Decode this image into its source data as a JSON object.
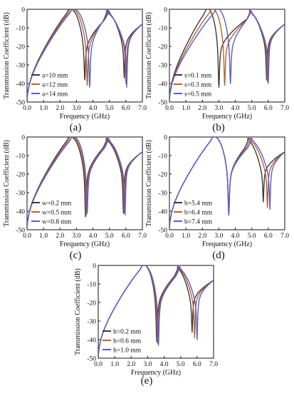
{
  "figure": {
    "background": "#ffffff",
    "axis_color": "#111111"
  },
  "chart_data": [
    {
      "type": "line",
      "panel_label": "(a)",
      "xlabel": "Frequency (GHz)",
      "ylabel": "Transmission Coefficient (dB)",
      "xlim": [
        0.0,
        7.0
      ],
      "ylim": [
        -50,
        0
      ],
      "xticks": [
        "0.0",
        "1.0",
        "2.0",
        "3.0",
        "4.0",
        "5.0",
        "6.0",
        "7.0"
      ],
      "yticks": [
        "0",
        "-10",
        "-20",
        "-30",
        "-40",
        "-50"
      ],
      "legend": "bottom-left",
      "series": [
        {
          "name": "a=10 mm",
          "color": "#3a3a3a",
          "peaks": [
            2.6,
            4.9
          ],
          "notches": [
            [
              3.5,
              -36
            ],
            [
              5.9,
              -35
            ]
          ]
        },
        {
          "name": "a=12 mm",
          "color": "#b8642a",
          "peaks": [
            2.7,
            4.85
          ],
          "notches": [
            [
              3.65,
              -39
            ],
            [
              6.0,
              -38
            ]
          ]
        },
        {
          "name": "a=14 mm",
          "color": "#5a5ad0",
          "peaks": [
            2.8,
            4.8
          ],
          "notches": [
            [
              3.8,
              -40
            ],
            [
              6.05,
              -40
            ]
          ]
        }
      ]
    },
    {
      "type": "line",
      "panel_label": "(b)",
      "xlabel": "Frequency (GHz)",
      "ylabel": "Transmission Coefficient (dB)",
      "xlim": [
        0.0,
        7.0
      ],
      "ylim": [
        -50,
        0
      ],
      "xticks": [
        "0.0",
        "1.0",
        "2.0",
        "3.0",
        "4.0",
        "5.0",
        "6.0",
        "7.0"
      ],
      "yticks": [
        "0",
        "-10",
        "-20",
        "-30",
        "-40",
        "-50"
      ],
      "legend": "bottom-left",
      "series": [
        {
          "name": "s=0.1 mm",
          "color": "#3a3a3a",
          "peaks": [
            2.3,
            4.9
          ],
          "notches": [
            [
              3.0,
              -40
            ],
            [
              5.9,
              -36
            ]
          ]
        },
        {
          "name": "s=0.3 mm",
          "color": "#b8642a",
          "peaks": [
            2.6,
            4.9
          ],
          "notches": [
            [
              3.35,
              -39
            ],
            [
              5.95,
              -37
            ]
          ]
        },
        {
          "name": "s=0.5 mm",
          "color": "#5a5ad0",
          "peaks": [
            2.9,
            4.85
          ],
          "notches": [
            [
              3.7,
              -38
            ],
            [
              6.0,
              -38
            ]
          ]
        }
      ]
    },
    {
      "type": "line",
      "panel_label": "(c)",
      "xlabel": "Frequency (GHz)",
      "ylabel": "Transmission Coefficient (dB)",
      "xlim": [
        0.0,
        7.0
      ],
      "ylim": [
        -50,
        0
      ],
      "xticks": [
        "0.0",
        "1.0",
        "2.0",
        "3.0",
        "4.0",
        "5.0",
        "6.0",
        "7.0"
      ],
      "yticks": [
        "0",
        "-10",
        "-20",
        "-30",
        "-40",
        "-50"
      ],
      "legend": "bottom-left",
      "series": [
        {
          "name": "w=0.2 mm",
          "color": "#3a3a3a",
          "peaks": [
            2.6,
            4.8
          ],
          "notches": [
            [
              3.55,
              -41
            ],
            [
              5.85,
              -39
            ]
          ]
        },
        {
          "name": "w=0.5 mm",
          "color": "#b8642a",
          "peaks": [
            2.7,
            4.85
          ],
          "notches": [
            [
              3.6,
              -40
            ],
            [
              5.9,
              -39
            ]
          ]
        },
        {
          "name": "w=0.8 mm",
          "color": "#5a5ad0",
          "peaks": [
            2.8,
            4.9
          ],
          "notches": [
            [
              3.65,
              -39
            ],
            [
              5.95,
              -40
            ]
          ]
        }
      ]
    },
    {
      "type": "line",
      "panel_label": "(d)",
      "xlabel": "Frequency (GHz)",
      "ylabel": "Transmission Coefficient (dB)",
      "xlim": [
        0.0,
        7.0
      ],
      "ylim": [
        -50,
        0
      ],
      "xticks": [
        "0.0",
        "1.0",
        "2.0",
        "3.0",
        "4.0",
        "5.0",
        "6.0",
        "7.0"
      ],
      "yticks": [
        "0",
        "-10",
        "-20",
        "-30",
        "-40",
        "-50"
      ],
      "legend": "bottom-left",
      "series": [
        {
          "name": "b=5.4 mm",
          "color": "#3a3a3a",
          "peaks": [
            2.7,
            4.75
          ],
          "notches": [
            [
              3.6,
              -40
            ],
            [
              5.7,
              -33
            ]
          ]
        },
        {
          "name": "b=6.4 mm",
          "color": "#b8642a",
          "peaks": [
            2.7,
            4.85
          ],
          "notches": [
            [
              3.6,
              -40
            ],
            [
              5.95,
              -36
            ]
          ]
        },
        {
          "name": "b=7.4 mm",
          "color": "#5a5ad0",
          "peaks": [
            2.7,
            4.95
          ],
          "notches": [
            [
              3.6,
              -40
            ],
            [
              6.1,
              -37
            ]
          ]
        }
      ]
    },
    {
      "type": "line",
      "panel_label": "(e)",
      "xlabel": "Frequency (GHz)",
      "ylabel": "Transmission Coefficient (dB)",
      "xlim": [
        0.0,
        7.0
      ],
      "ylim": [
        -50,
        0
      ],
      "xticks": [
        "0.0",
        "1.0",
        "2.0",
        "3.0",
        "4.0",
        "5.0",
        "6.0",
        "7.0"
      ],
      "yticks": [
        "0",
        "-10",
        "-20",
        "-30",
        "-40",
        "-50"
      ],
      "legend": "bottom-left",
      "series": [
        {
          "name": "h=0.2 mm",
          "color": "#3a3a3a",
          "peaks": [
            2.75,
            4.8
          ],
          "notches": [
            [
              3.55,
              -39
            ],
            [
              5.7,
              -34
            ]
          ]
        },
        {
          "name": "h=0.6 mm",
          "color": "#b8642a",
          "peaks": [
            2.75,
            4.85
          ],
          "notches": [
            [
              3.6,
              -40
            ],
            [
              5.85,
              -37
            ]
          ]
        },
        {
          "name": "h=1.0 mm",
          "color": "#5a5ad0",
          "peaks": [
            2.75,
            4.9
          ],
          "notches": [
            [
              3.65,
              -41
            ],
            [
              6.0,
              -38
            ]
          ]
        }
      ]
    }
  ]
}
